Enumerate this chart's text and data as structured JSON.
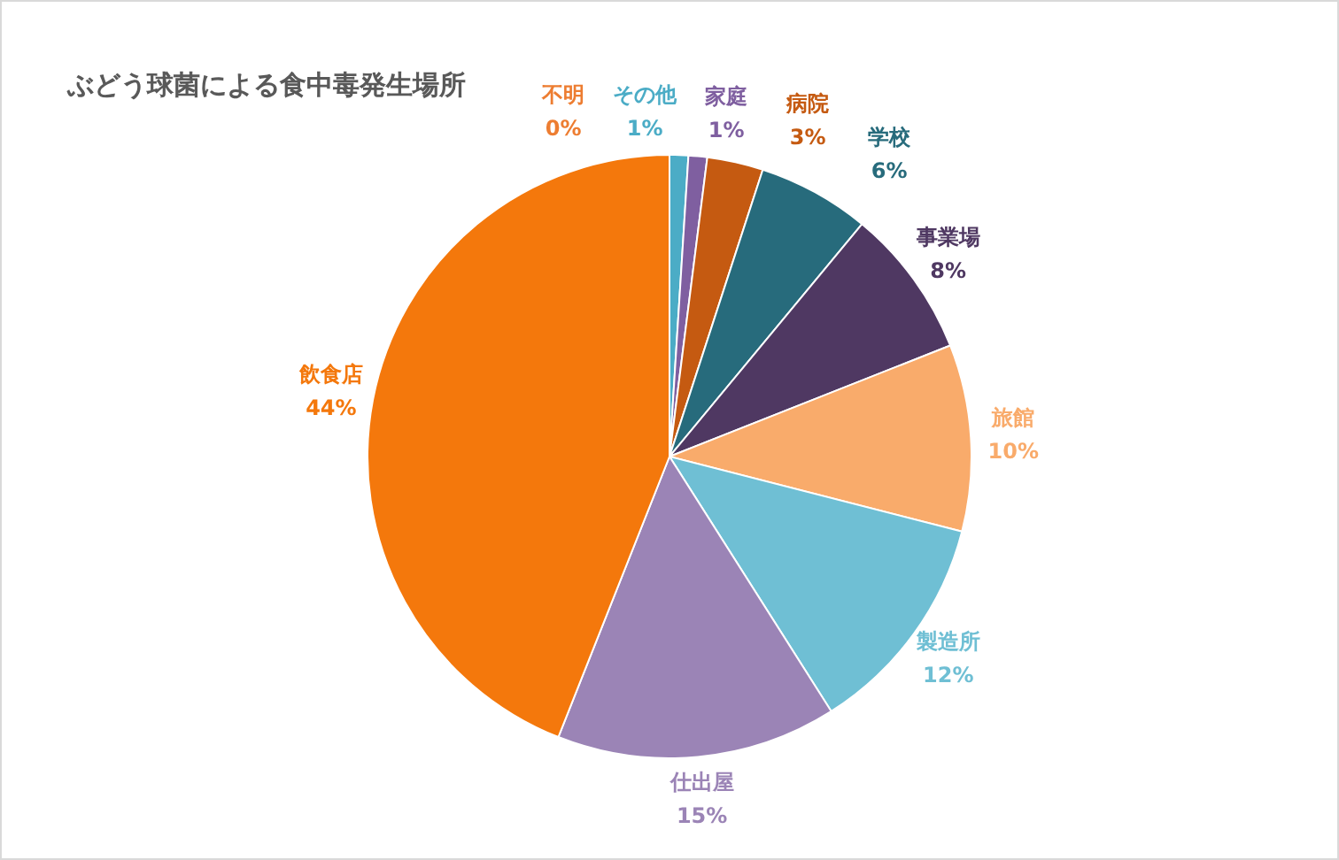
{
  "chart_data": {
    "type": "pie",
    "title": "ぶどう球菌による食中毒発生場所",
    "categories": [
      "不明",
      "その他",
      "家庭",
      "病院",
      "学校",
      "事業場",
      "旅館",
      "製造所",
      "仕出屋",
      "飲食店"
    ],
    "values": [
      0,
      1,
      1,
      3,
      6,
      8,
      10,
      12,
      15,
      44
    ],
    "value_labels": [
      "0%",
      "1%",
      "1%",
      "3%",
      "6%",
      "8%",
      "10%",
      "12%",
      "15%",
      "44%"
    ],
    "colors": [
      "#ed7d31",
      "#4bacc6",
      "#7f5fa0",
      "#c55a11",
      "#276b7c",
      "#4f3862",
      "#f9ab6b",
      "#6fbfd4",
      "#9b84b6",
      "#f4780c"
    ],
    "legend": false
  }
}
